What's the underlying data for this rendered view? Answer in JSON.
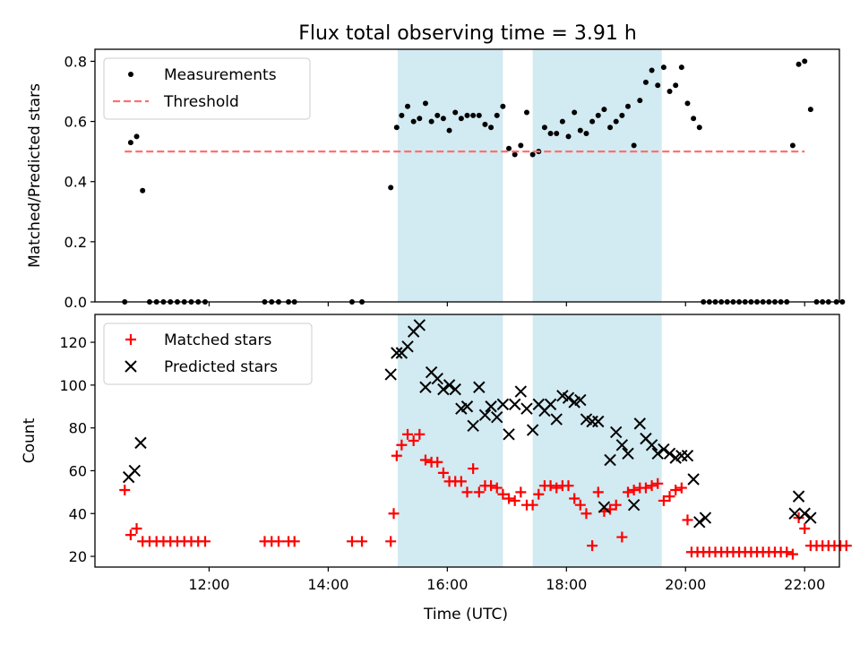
{
  "title": "Flux total observing time = 3.91 h",
  "xlabel": "Time (UTC)",
  "colors": {
    "shade": "#add8e6",
    "threshold": "#ff7070",
    "matched": "#ff0000",
    "predicted": "#000000",
    "measurement": "#000000"
  },
  "chart_data": [
    {
      "type": "scatter",
      "panel": "top",
      "ylabel": "Matched/Predicted stars",
      "xlim": [
        "10:05",
        "22:35"
      ],
      "ylim": [
        0,
        0.84
      ],
      "x_ticks": [
        "12:00",
        "14:00",
        "16:00",
        "18:00",
        "20:00",
        "22:00"
      ],
      "y_ticks": [
        "0.0",
        "0.2",
        "0.4",
        "0.6",
        "0.8"
      ],
      "grid": false,
      "legend_position": "upper-left",
      "shaded_regions": [
        [
          "15:10",
          "16:56"
        ],
        [
          "17:26",
          "19:36"
        ]
      ],
      "series": [
        {
          "name": "Measurements",
          "marker": "dot",
          "points": [
            [
              "10:35",
              0
            ],
            [
              "10:41",
              0.53
            ],
            [
              "10:47",
              0.55
            ],
            [
              "10:53",
              0.37
            ],
            [
              "11:00",
              0
            ],
            [
              "11:07",
              0
            ],
            [
              "11:14",
              0
            ],
            [
              "11:21",
              0
            ],
            [
              "11:28",
              0
            ],
            [
              "11:35",
              0
            ],
            [
              "11:42",
              0
            ],
            [
              "11:49",
              0
            ],
            [
              "11:56",
              0
            ],
            [
              "12:56",
              0
            ],
            [
              "13:03",
              0
            ],
            [
              "13:10",
              0
            ],
            [
              "13:20",
              0
            ],
            [
              "13:26",
              0
            ],
            [
              "14:24",
              0
            ],
            [
              "14:34",
              0
            ],
            [
              "15:03",
              0.38
            ],
            [
              "15:09",
              0.58
            ],
            [
              "15:14",
              0.62
            ],
            [
              "15:20",
              0.65
            ],
            [
              "15:26",
              0.6
            ],
            [
              "15:32",
              0.61
            ],
            [
              "15:38",
              0.66
            ],
            [
              "15:44",
              0.6
            ],
            [
              "15:50",
              0.62
            ],
            [
              "15:56",
              0.61
            ],
            [
              "16:02",
              0.57
            ],
            [
              "16:08",
              0.63
            ],
            [
              "16:14",
              0.61
            ],
            [
              "16:20",
              0.62
            ],
            [
              "16:26",
              0.62
            ],
            [
              "16:32",
              0.62
            ],
            [
              "16:38",
              0.59
            ],
            [
              "16:44",
              0.58
            ],
            [
              "16:50",
              0.62
            ],
            [
              "16:56",
              0.65
            ],
            [
              "17:02",
              0.51
            ],
            [
              "17:08",
              0.49
            ],
            [
              "17:14",
              0.52
            ],
            [
              "17:20",
              0.63
            ],
            [
              "17:26",
              0.49
            ],
            [
              "17:32",
              0.5
            ],
            [
              "17:38",
              0.58
            ],
            [
              "17:44",
              0.56
            ],
            [
              "17:50",
              0.56
            ],
            [
              "17:56",
              0.6
            ],
            [
              "18:02",
              0.55
            ],
            [
              "18:08",
              0.63
            ],
            [
              "18:14",
              0.57
            ],
            [
              "18:20",
              0.56
            ],
            [
              "18:26",
              0.6
            ],
            [
              "18:32",
              0.62
            ],
            [
              "18:38",
              0.64
            ],
            [
              "18:44",
              0.58
            ],
            [
              "18:50",
              0.6
            ],
            [
              "18:56",
              0.62
            ],
            [
              "19:02",
              0.65
            ],
            [
              "19:08",
              0.52
            ],
            [
              "19:14",
              0.67
            ],
            [
              "19:20",
              0.73
            ],
            [
              "19:26",
              0.77
            ],
            [
              "19:32",
              0.72
            ],
            [
              "19:38",
              0.78
            ],
            [
              "19:44",
              0.7
            ],
            [
              "19:50",
              0.72
            ],
            [
              "19:56",
              0.78
            ],
            [
              "20:02",
              0.66
            ],
            [
              "20:08",
              0.61
            ],
            [
              "20:14",
              0.58
            ],
            [
              "20:18",
              0
            ],
            [
              "20:24",
              0
            ],
            [
              "20:30",
              0
            ],
            [
              "20:36",
              0
            ],
            [
              "20:42",
              0
            ],
            [
              "20:48",
              0
            ],
            [
              "20:54",
              0
            ],
            [
              "21:00",
              0
            ],
            [
              "21:06",
              0
            ],
            [
              "21:12",
              0
            ],
            [
              "21:18",
              0
            ],
            [
              "21:24",
              0
            ],
            [
              "21:30",
              0
            ],
            [
              "21:36",
              0
            ],
            [
              "21:42",
              0
            ],
            [
              "21:48",
              0.52
            ],
            [
              "21:54",
              0.79
            ],
            [
              "22:00",
              0.8
            ],
            [
              "22:06",
              0.64
            ],
            [
              "22:12",
              0
            ],
            [
              "22:18",
              0
            ],
            [
              "22:24",
              0
            ],
            [
              "22:32",
              0
            ],
            [
              "22:38",
              0
            ]
          ]
        },
        {
          "name": "Threshold",
          "marker": "dashed-line",
          "y": 0.5,
          "x_range": [
            "10:35",
            "22:00"
          ]
        }
      ]
    },
    {
      "type": "scatter",
      "panel": "bottom",
      "ylabel": "Count",
      "xlim": [
        "10:05",
        "22:35"
      ],
      "ylim": [
        15,
        133
      ],
      "x_ticks": [
        "12:00",
        "14:00",
        "16:00",
        "18:00",
        "20:00",
        "22:00"
      ],
      "y_ticks": [
        "20",
        "40",
        "60",
        "80",
        "100",
        "120"
      ],
      "grid": false,
      "legend_position": "upper-left",
      "shaded_regions": [
        [
          "15:10",
          "16:56"
        ],
        [
          "17:26",
          "19:36"
        ]
      ],
      "series": [
        {
          "name": "Matched stars",
          "marker": "plus",
          "points": [
            [
              "10:35",
              51
            ],
            [
              "10:41",
              30
            ],
            [
              "10:47",
              33
            ],
            [
              "10:53",
              27
            ],
            [
              "11:00",
              27
            ],
            [
              "11:07",
              27
            ],
            [
              "11:14",
              27
            ],
            [
              "11:21",
              27
            ],
            [
              "11:28",
              27
            ],
            [
              "11:35",
              27
            ],
            [
              "11:42",
              27
            ],
            [
              "11:49",
              27
            ],
            [
              "11:56",
              27
            ],
            [
              "12:56",
              27
            ],
            [
              "13:03",
              27
            ],
            [
              "13:10",
              27
            ],
            [
              "13:20",
              27
            ],
            [
              "13:26",
              27
            ],
            [
              "14:24",
              27
            ],
            [
              "14:34",
              27
            ],
            [
              "15:03",
              27
            ],
            [
              "15:06",
              40
            ],
            [
              "15:09",
              67
            ],
            [
              "15:14",
              72
            ],
            [
              "15:20",
              77
            ],
            [
              "15:26",
              74
            ],
            [
              "15:32",
              77
            ],
            [
              "15:38",
              65
            ],
            [
              "15:44",
              64
            ],
            [
              "15:50",
              64
            ],
            [
              "15:56",
              59
            ],
            [
              "16:02",
              55
            ],
            [
              "16:08",
              55
            ],
            [
              "16:14",
              55
            ],
            [
              "16:20",
              50
            ],
            [
              "16:26",
              61
            ],
            [
              "16:32",
              50
            ],
            [
              "16:38",
              53
            ],
            [
              "16:44",
              53
            ],
            [
              "16:50",
              52
            ],
            [
              "16:56",
              49
            ],
            [
              "17:02",
              47
            ],
            [
              "17:08",
              46
            ],
            [
              "17:14",
              50
            ],
            [
              "17:20",
              44
            ],
            [
              "17:26",
              44
            ],
            [
              "17:32",
              49
            ],
            [
              "17:38",
              53
            ],
            [
              "17:44",
              53
            ],
            [
              "17:50",
              52
            ],
            [
              "17:56",
              53
            ],
            [
              "18:02",
              53
            ],
            [
              "18:08",
              47
            ],
            [
              "18:14",
              44
            ],
            [
              "18:20",
              40
            ],
            [
              "18:26",
              25
            ],
            [
              "18:32",
              50
            ],
            [
              "18:38",
              41
            ],
            [
              "18:44",
              42
            ],
            [
              "18:50",
              44
            ],
            [
              "18:56",
              29
            ],
            [
              "19:02",
              50
            ],
            [
              "19:08",
              51
            ],
            [
              "19:14",
              52
            ],
            [
              "19:20",
              52
            ],
            [
              "19:26",
              53
            ],
            [
              "19:32",
              54
            ],
            [
              "19:38",
              46
            ],
            [
              "19:44",
              48
            ],
            [
              "19:50",
              51
            ],
            [
              "19:56",
              52
            ],
            [
              "20:02",
              37
            ],
            [
              "20:06",
              22
            ],
            [
              "20:12",
              22
            ],
            [
              "20:18",
              22
            ],
            [
              "20:24",
              22
            ],
            [
              "20:30",
              22
            ],
            [
              "20:36",
              22
            ],
            [
              "20:42",
              22
            ],
            [
              "20:48",
              22
            ],
            [
              "20:54",
              22
            ],
            [
              "21:00",
              22
            ],
            [
              "21:06",
              22
            ],
            [
              "21:12",
              22
            ],
            [
              "21:18",
              22
            ],
            [
              "21:24",
              22
            ],
            [
              "21:30",
              22
            ],
            [
              "21:36",
              22
            ],
            [
              "21:42",
              22
            ],
            [
              "21:48",
              21
            ],
            [
              "21:54",
              38
            ],
            [
              "22:00",
              33
            ],
            [
              "22:06",
              25
            ],
            [
              "22:12",
              25
            ],
            [
              "22:18",
              25
            ],
            [
              "22:24",
              25
            ],
            [
              "22:30",
              25
            ],
            [
              "22:36",
              25
            ],
            [
              "22:42",
              25
            ]
          ]
        },
        {
          "name": "Predicted stars",
          "marker": "x",
          "points": [
            [
              "10:39",
              57
            ],
            [
              "10:45",
              60
            ],
            [
              "10:51",
              73
            ],
            [
              "15:03",
              105
            ],
            [
              "15:09",
              115
            ],
            [
              "15:14",
              115
            ],
            [
              "15:20",
              118
            ],
            [
              "15:26",
              125
            ],
            [
              "15:32",
              128
            ],
            [
              "15:38",
              99
            ],
            [
              "15:44",
              106
            ],
            [
              "15:50",
              103
            ],
            [
              "15:56",
              98
            ],
            [
              "16:02",
              100
            ],
            [
              "16:08",
              98
            ],
            [
              "16:14",
              89
            ],
            [
              "16:20",
              90
            ],
            [
              "16:26",
              81
            ],
            [
              "16:32",
              99
            ],
            [
              "16:38",
              86
            ],
            [
              "16:44",
              90
            ],
            [
              "16:50",
              85
            ],
            [
              "16:56",
              91
            ],
            [
              "17:02",
              77
            ],
            [
              "17:08",
              91
            ],
            [
              "17:14",
              97
            ],
            [
              "17:20",
              89
            ],
            [
              "17:26",
              79
            ],
            [
              "17:32",
              91
            ],
            [
              "17:38",
              88
            ],
            [
              "17:44",
              91
            ],
            [
              "17:50",
              84
            ],
            [
              "17:56",
              95
            ],
            [
              "18:02",
              94
            ],
            [
              "18:08",
              92
            ],
            [
              "18:14",
              93
            ],
            [
              "18:20",
              84
            ],
            [
              "18:26",
              83
            ],
            [
              "18:32",
              83
            ],
            [
              "18:38",
              43
            ],
            [
              "18:44",
              65
            ],
            [
              "18:50",
              78
            ],
            [
              "18:56",
              72
            ],
            [
              "19:02",
              68
            ],
            [
              "19:08",
              44
            ],
            [
              "19:14",
              82
            ],
            [
              "19:20",
              75
            ],
            [
              "19:26",
              72
            ],
            [
              "19:32",
              68
            ],
            [
              "19:38",
              70
            ],
            [
              "19:44",
              68
            ],
            [
              "19:50",
              66
            ],
            [
              "19:56",
              67
            ],
            [
              "20:02",
              67
            ],
            [
              "20:08",
              56
            ],
            [
              "20:14",
              36
            ],
            [
              "20:20",
              38
            ],
            [
              "21:50",
              40
            ],
            [
              "21:54",
              48
            ],
            [
              "22:00",
              40
            ],
            [
              "22:06",
              38
            ]
          ]
        }
      ]
    }
  ]
}
